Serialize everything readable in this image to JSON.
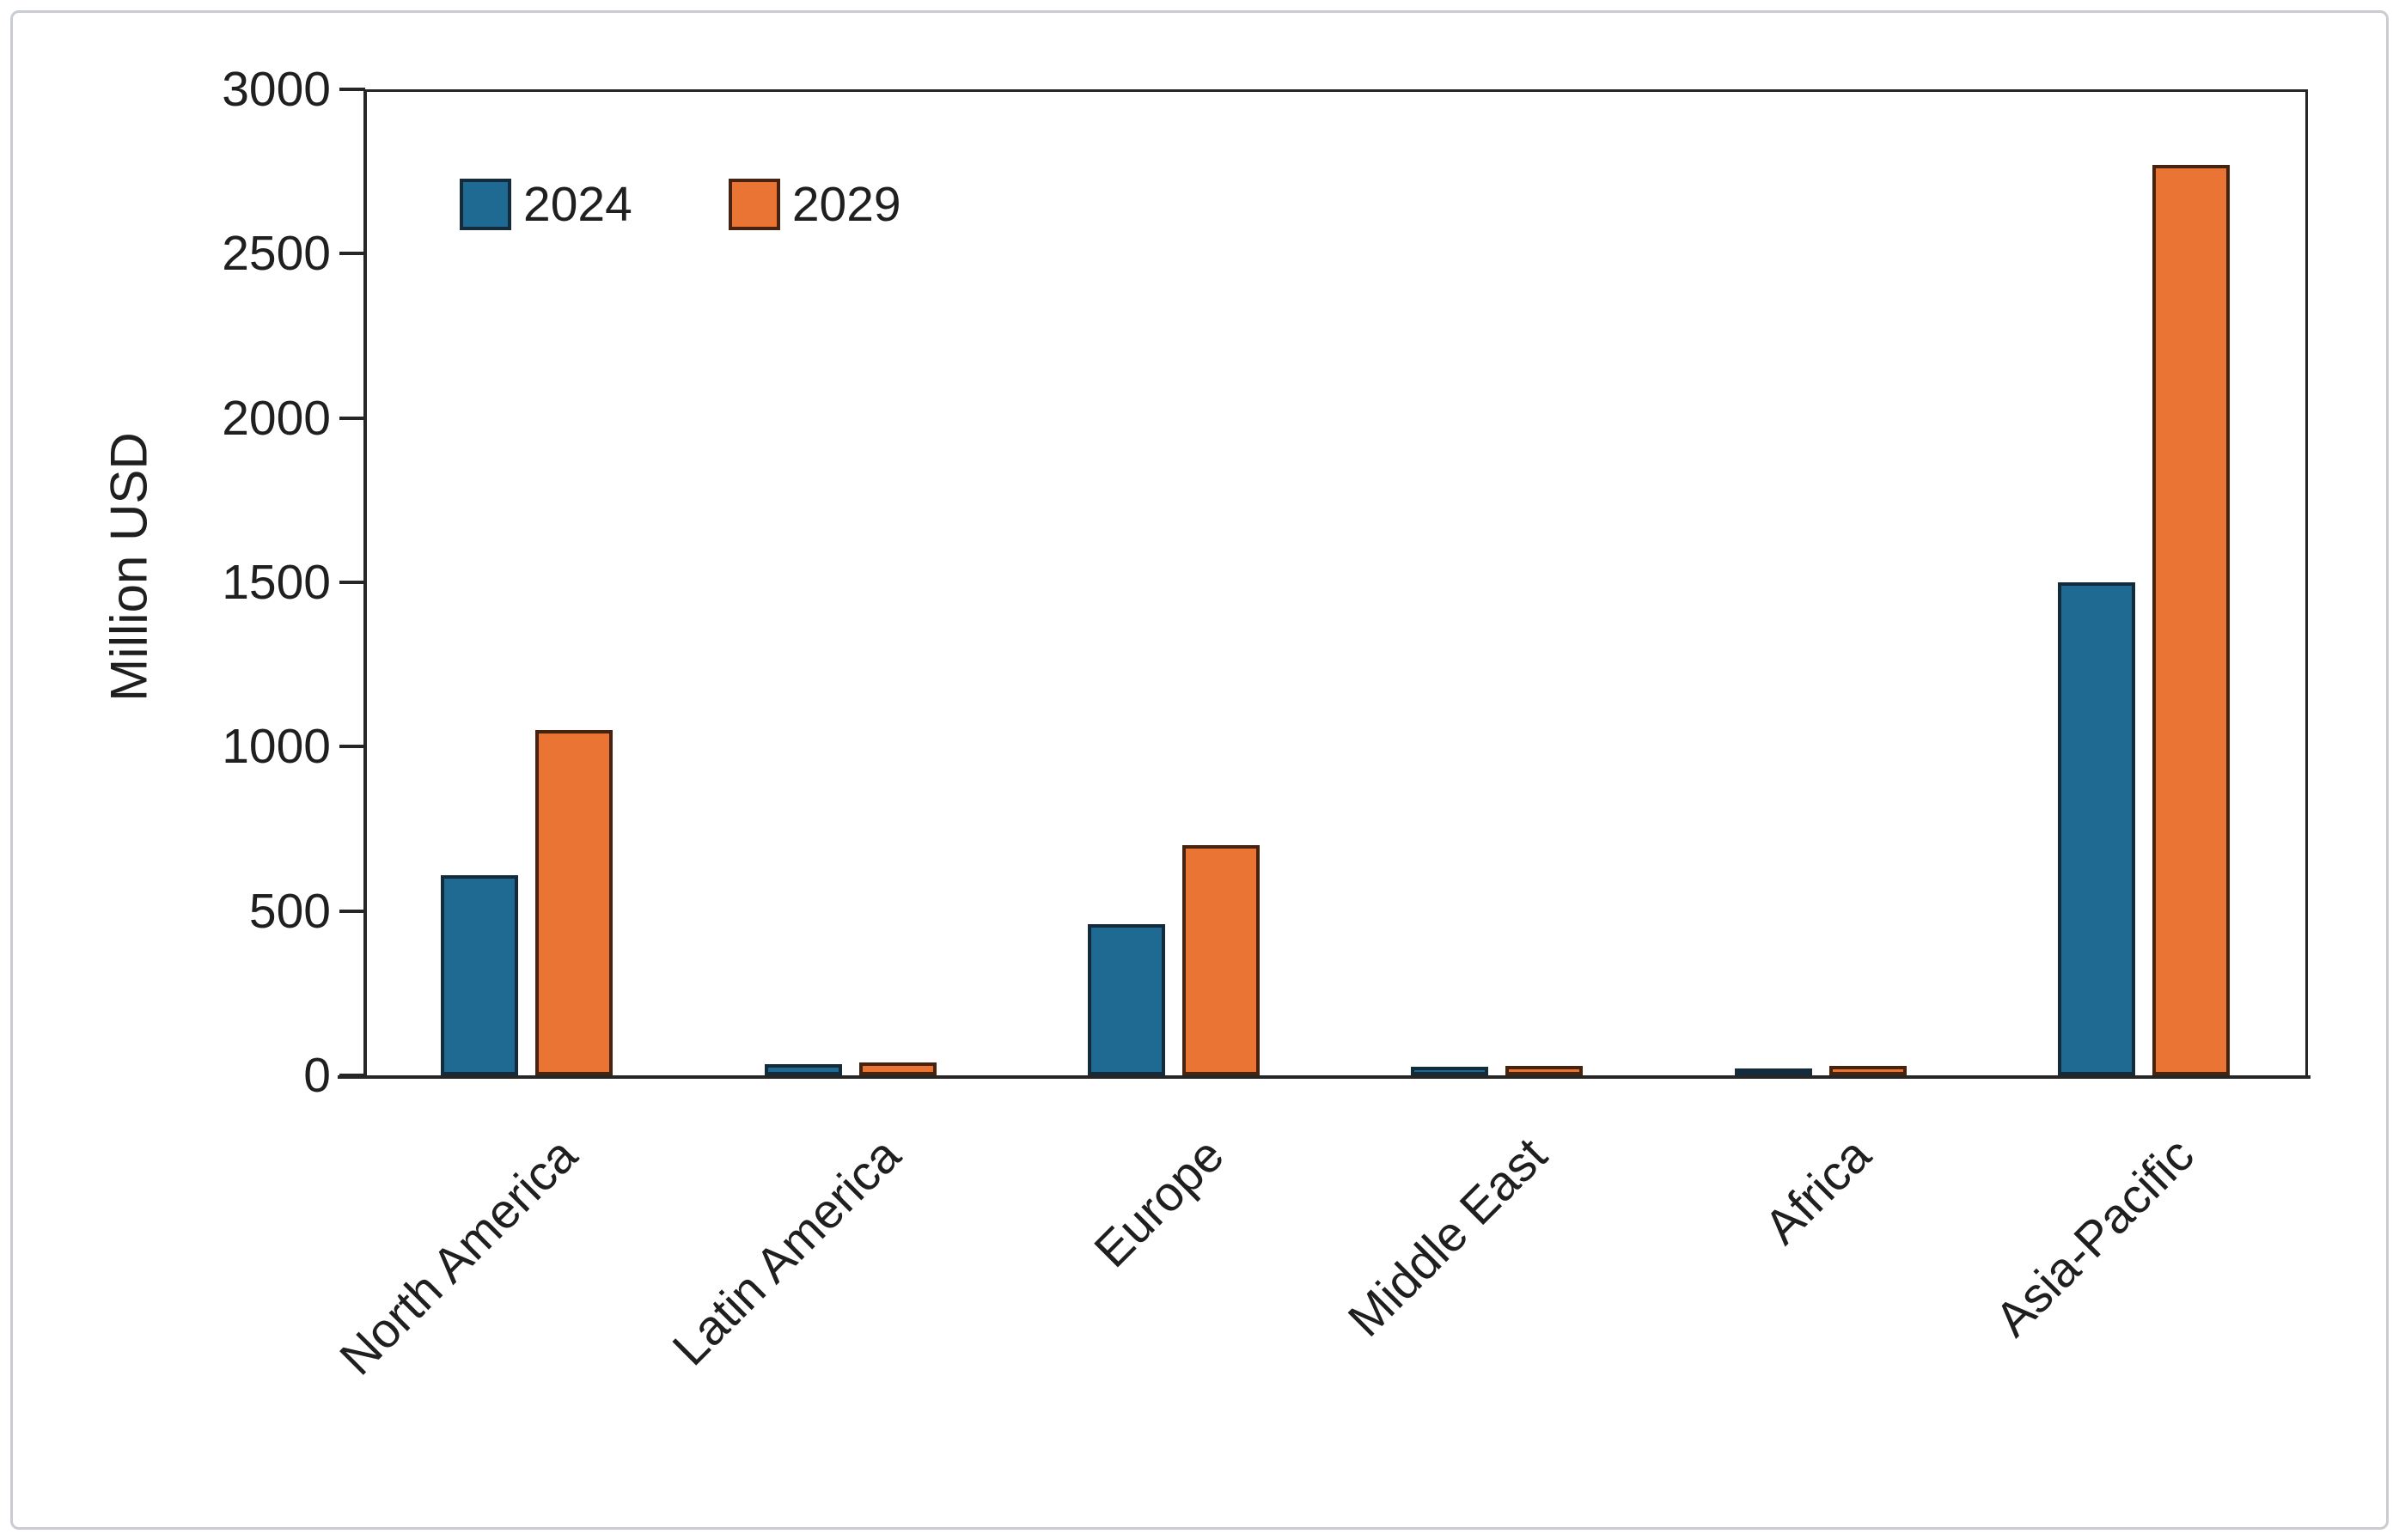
{
  "page": {
    "background_color": "#ffffff",
    "frame_border_color": "#c9cdd1"
  },
  "chart_data": {
    "type": "bar",
    "title": "",
    "xlabel": "",
    "ylabel": "Million USD",
    "categories": [
      "North America",
      "Latin America",
      "Europe",
      "Middle East",
      "Africa",
      "Asia-Pacific"
    ],
    "series": [
      {
        "name": "2024",
        "color": "#1E6A93",
        "border_color": "#142B3C",
        "values": [
          610,
          35,
          460,
          25,
          20,
          1500
        ]
      },
      {
        "name": "2029",
        "color": "#EA7434",
        "border_color": "#46230E",
        "values": [
          1050,
          40,
          700,
          30,
          30,
          2770
        ]
      }
    ],
    "ylim": [
      0,
      3000
    ],
    "ytick_step": 500,
    "ytick_labels": [
      "3000",
      "2500",
      "2000",
      "1500",
      "1000",
      "500",
      "0"
    ],
    "grid": "off",
    "legend_position": "inside-top-left",
    "axis_color": "#262626",
    "text_color": "#1f1f1f"
  }
}
